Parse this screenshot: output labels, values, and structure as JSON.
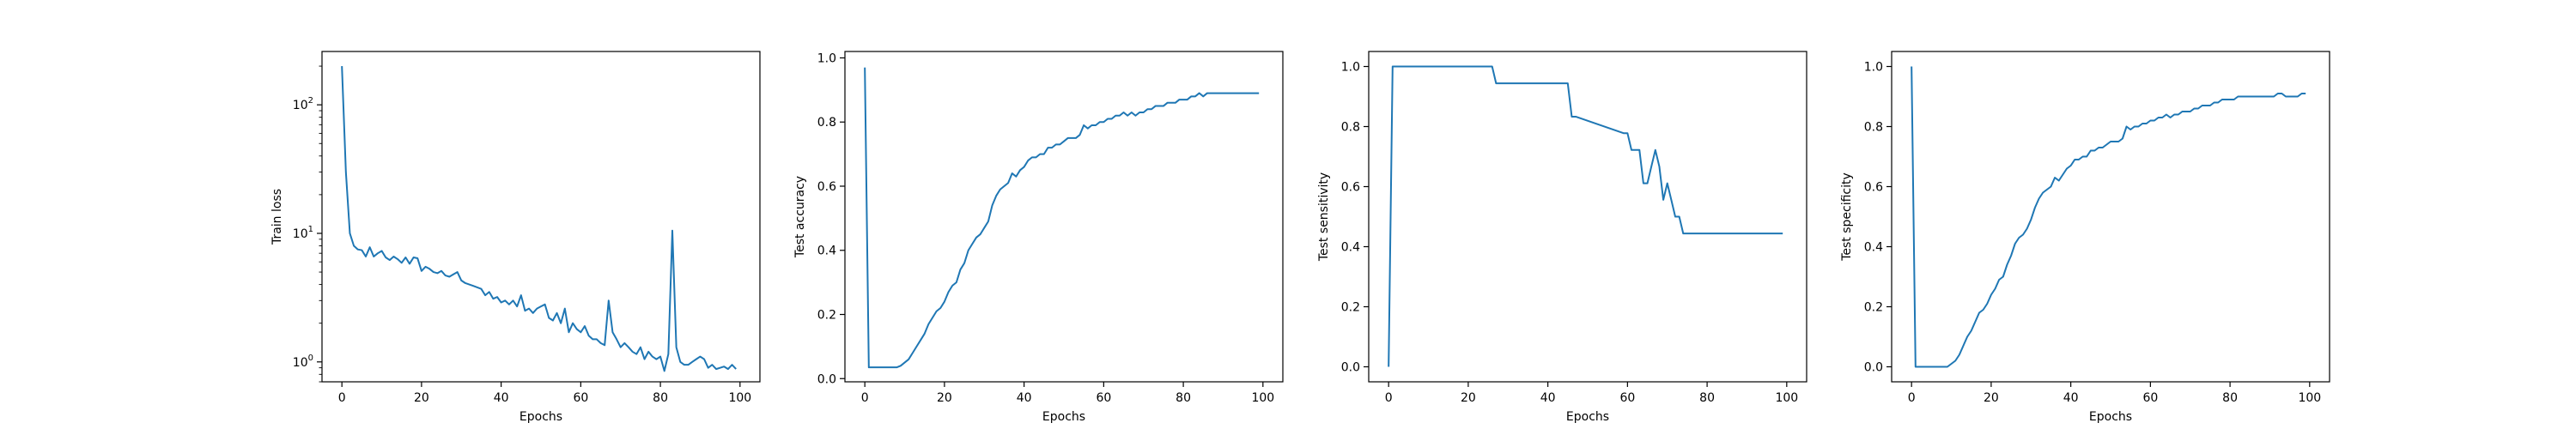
{
  "chart_data": [
    {
      "type": "line",
      "xlabel": "Epochs",
      "ylabel": "Train loss",
      "yscale": "log",
      "xlim": [
        -5,
        105
      ],
      "ylim": [
        0.7,
        260
      ],
      "xticks": [
        0,
        20,
        40,
        60,
        80,
        100
      ],
      "xtick_labels": [
        "0",
        "20",
        "40",
        "60",
        "80",
        "100"
      ],
      "yticks": [
        1,
        10,
        100
      ],
      "ytick_labels": [
        "10^0",
        "10^1",
        "10^2"
      ],
      "grid": false,
      "series": [
        {
          "color": "#1f77b4",
          "x": [
            0,
            1,
            2,
            3,
            4,
            5,
            6,
            7,
            8,
            9,
            10,
            11,
            12,
            13,
            14,
            15,
            16,
            17,
            18,
            19,
            20,
            21,
            22,
            23,
            24,
            25,
            26,
            27,
            28,
            29,
            30,
            31,
            32,
            33,
            34,
            35,
            36,
            37,
            38,
            39,
            40,
            41,
            42,
            43,
            44,
            45,
            46,
            47,
            48,
            49,
            50,
            51,
            52,
            53,
            54,
            55,
            56,
            57,
            58,
            59,
            60,
            61,
            62,
            63,
            64,
            65,
            66,
            67,
            68,
            69,
            70,
            71,
            72,
            73,
            74,
            75,
            76,
            77,
            78,
            79,
            80,
            81,
            82,
            83,
            84,
            85,
            86,
            87,
            88,
            89,
            90,
            91,
            92,
            93,
            94,
            95,
            96,
            97,
            98,
            99
          ],
          "y": [
            200,
            30,
            10,
            8,
            7.5,
            7.4,
            6.6,
            7.8,
            6.6,
            7.0,
            7.3,
            6.5,
            6.2,
            6.6,
            6.3,
            5.9,
            6.5,
            5.8,
            6.5,
            6.4,
            5.1,
            5.5,
            5.3,
            5.0,
            4.9,
            5.1,
            4.7,
            4.6,
            4.8,
            5.0,
            4.3,
            4.1,
            4.0,
            3.9,
            3.8,
            3.7,
            3.3,
            3.5,
            3.1,
            3.2,
            2.9,
            3.0,
            2.8,
            3.0,
            2.7,
            3.3,
            2.5,
            2.6,
            2.4,
            2.6,
            2.7,
            2.8,
            2.2,
            2.1,
            2.4,
            2.0,
            2.6,
            1.7,
            2.0,
            1.8,
            1.7,
            1.9,
            1.6,
            1.5,
            1.5,
            1.4,
            1.35,
            3.0,
            1.7,
            1.5,
            1.3,
            1.4,
            1.3,
            1.2,
            1.15,
            1.3,
            1.05,
            1.2,
            1.1,
            1.05,
            1.1,
            0.85,
            1.15,
            10.5,
            1.3,
            1.0,
            0.95,
            0.95,
            1.0,
            1.05,
            1.1,
            1.05,
            0.9,
            0.95,
            0.88,
            0.9,
            0.92,
            0.88,
            0.95,
            0.88
          ]
        }
      ]
    },
    {
      "type": "line",
      "xlabel": "Epochs",
      "ylabel": "Test accuracy",
      "xlim": [
        -5,
        105
      ],
      "ylim": [
        -0.01,
        1.02
      ],
      "xticks": [
        0,
        20,
        40,
        60,
        80,
        100
      ],
      "xtick_labels": [
        "0",
        "20",
        "40",
        "60",
        "80",
        "100"
      ],
      "yticks": [
        0.0,
        0.2,
        0.4,
        0.6,
        0.8,
        1.0
      ],
      "ytick_labels": [
        "0.0",
        "0.2",
        "0.4",
        "0.6",
        "0.8",
        "1.0"
      ],
      "grid": false,
      "series": [
        {
          "color": "#1f77b4",
          "x": [
            0,
            1,
            2,
            3,
            4,
            5,
            6,
            7,
            8,
            9,
            10,
            11,
            12,
            13,
            14,
            15,
            16,
            17,
            18,
            19,
            20,
            21,
            22,
            23,
            24,
            25,
            26,
            27,
            28,
            29,
            30,
            31,
            32,
            33,
            34,
            35,
            36,
            37,
            38,
            39,
            40,
            41,
            42,
            43,
            44,
            45,
            46,
            47,
            48,
            49,
            50,
            51,
            52,
            53,
            54,
            55,
            56,
            57,
            58,
            59,
            60,
            61,
            62,
            63,
            64,
            65,
            66,
            67,
            68,
            69,
            70,
            71,
            72,
            73,
            74,
            75,
            76,
            77,
            78,
            79,
            80,
            81,
            82,
            83,
            84,
            85,
            86,
            87,
            88,
            89,
            90,
            91,
            92,
            93,
            94,
            95,
            96,
            97,
            98,
            99
          ],
          "y": [
            0.97,
            0.035,
            0.035,
            0.035,
            0.035,
            0.035,
            0.035,
            0.035,
            0.035,
            0.04,
            0.05,
            0.06,
            0.08,
            0.1,
            0.12,
            0.14,
            0.17,
            0.19,
            0.21,
            0.22,
            0.24,
            0.27,
            0.29,
            0.3,
            0.34,
            0.36,
            0.4,
            0.42,
            0.44,
            0.45,
            0.47,
            0.49,
            0.54,
            0.57,
            0.59,
            0.6,
            0.61,
            0.64,
            0.63,
            0.65,
            0.66,
            0.68,
            0.69,
            0.69,
            0.7,
            0.7,
            0.72,
            0.72,
            0.73,
            0.73,
            0.74,
            0.75,
            0.75,
            0.75,
            0.76,
            0.79,
            0.78,
            0.79,
            0.79,
            0.8,
            0.8,
            0.81,
            0.81,
            0.82,
            0.82,
            0.83,
            0.82,
            0.83,
            0.82,
            0.83,
            0.83,
            0.84,
            0.84,
            0.85,
            0.85,
            0.85,
            0.86,
            0.86,
            0.86,
            0.87,
            0.87,
            0.87,
            0.88,
            0.88,
            0.89,
            0.88,
            0.89,
            0.89,
            0.89,
            0.89,
            0.89,
            0.89,
            0.89,
            0.89,
            0.89,
            0.89,
            0.89,
            0.89,
            0.89,
            0.89
          ]
        }
      ]
    },
    {
      "type": "line",
      "xlabel": "Epochs",
      "ylabel": "Test sensitivity",
      "xlim": [
        -5,
        105
      ],
      "ylim": [
        -0.05,
        1.05
      ],
      "xticks": [
        0,
        20,
        40,
        60,
        80,
        100
      ],
      "xtick_labels": [
        "0",
        "20",
        "40",
        "60",
        "80",
        "100"
      ],
      "yticks": [
        0.0,
        0.2,
        0.4,
        0.6,
        0.8,
        1.0
      ],
      "ytick_labels": [
        "0.0",
        "0.2",
        "0.4",
        "0.6",
        "0.8",
        "1.0"
      ],
      "grid": false,
      "series": [
        {
          "color": "#1f77b4",
          "x": [
            0,
            1,
            26,
            27,
            45,
            46,
            47,
            59,
            60,
            61,
            62,
            63,
            64,
            65,
            66,
            67,
            68,
            69,
            70,
            71,
            72,
            73,
            74,
            99
          ],
          "y": [
            0.0,
            1.0,
            1.0,
            0.944,
            0.944,
            0.833,
            0.833,
            0.778,
            0.778,
            0.722,
            0.722,
            0.722,
            0.611,
            0.611,
            0.667,
            0.722,
            0.667,
            0.556,
            0.611,
            0.556,
            0.5,
            0.5,
            0.444,
            0.444
          ]
        }
      ]
    },
    {
      "type": "line",
      "xlabel": "Epochs",
      "ylabel": "Test specificity",
      "xlim": [
        -5,
        105
      ],
      "ylim": [
        -0.05,
        1.05
      ],
      "xticks": [
        0,
        20,
        40,
        60,
        80,
        100
      ],
      "xtick_labels": [
        "0",
        "20",
        "40",
        "60",
        "80",
        "100"
      ],
      "yticks": [
        0.0,
        0.2,
        0.4,
        0.6,
        0.8,
        1.0
      ],
      "ytick_labels": [
        "0.0",
        "0.2",
        "0.4",
        "0.6",
        "0.8",
        "1.0"
      ],
      "grid": false,
      "series": [
        {
          "color": "#1f77b4",
          "x": [
            0,
            1,
            2,
            3,
            4,
            5,
            6,
            7,
            8,
            9,
            10,
            11,
            12,
            13,
            14,
            15,
            16,
            17,
            18,
            19,
            20,
            21,
            22,
            23,
            24,
            25,
            26,
            27,
            28,
            29,
            30,
            31,
            32,
            33,
            34,
            35,
            36,
            37,
            38,
            39,
            40,
            41,
            42,
            43,
            44,
            45,
            46,
            47,
            48,
            49,
            50,
            51,
            52,
            53,
            54,
            55,
            56,
            57,
            58,
            59,
            60,
            61,
            62,
            63,
            64,
            65,
            66,
            67,
            68,
            69,
            70,
            71,
            72,
            73,
            74,
            75,
            76,
            77,
            78,
            79,
            80,
            81,
            82,
            83,
            84,
            85,
            86,
            87,
            88,
            89,
            90,
            91,
            92,
            93,
            94,
            95,
            96,
            97,
            98,
            99
          ],
          "y": [
            1.0,
            0.0,
            0.0,
            0.0,
            0.0,
            0.0,
            0.0,
            0.0,
            0.0,
            0.0,
            0.01,
            0.02,
            0.04,
            0.07,
            0.1,
            0.12,
            0.15,
            0.18,
            0.19,
            0.21,
            0.24,
            0.26,
            0.29,
            0.3,
            0.34,
            0.37,
            0.41,
            0.43,
            0.44,
            0.46,
            0.49,
            0.53,
            0.56,
            0.58,
            0.59,
            0.6,
            0.63,
            0.62,
            0.64,
            0.66,
            0.67,
            0.69,
            0.69,
            0.7,
            0.7,
            0.72,
            0.72,
            0.73,
            0.73,
            0.74,
            0.75,
            0.75,
            0.75,
            0.76,
            0.8,
            0.79,
            0.8,
            0.8,
            0.81,
            0.81,
            0.82,
            0.82,
            0.83,
            0.83,
            0.84,
            0.83,
            0.84,
            0.84,
            0.85,
            0.85,
            0.85,
            0.86,
            0.86,
            0.87,
            0.87,
            0.87,
            0.88,
            0.88,
            0.89,
            0.89,
            0.89,
            0.89,
            0.9,
            0.9,
            0.9,
            0.9,
            0.9,
            0.9,
            0.9,
            0.9,
            0.9,
            0.9,
            0.91,
            0.91,
            0.9,
            0.9,
            0.9,
            0.9,
            0.91,
            0.91
          ]
        }
      ]
    }
  ]
}
